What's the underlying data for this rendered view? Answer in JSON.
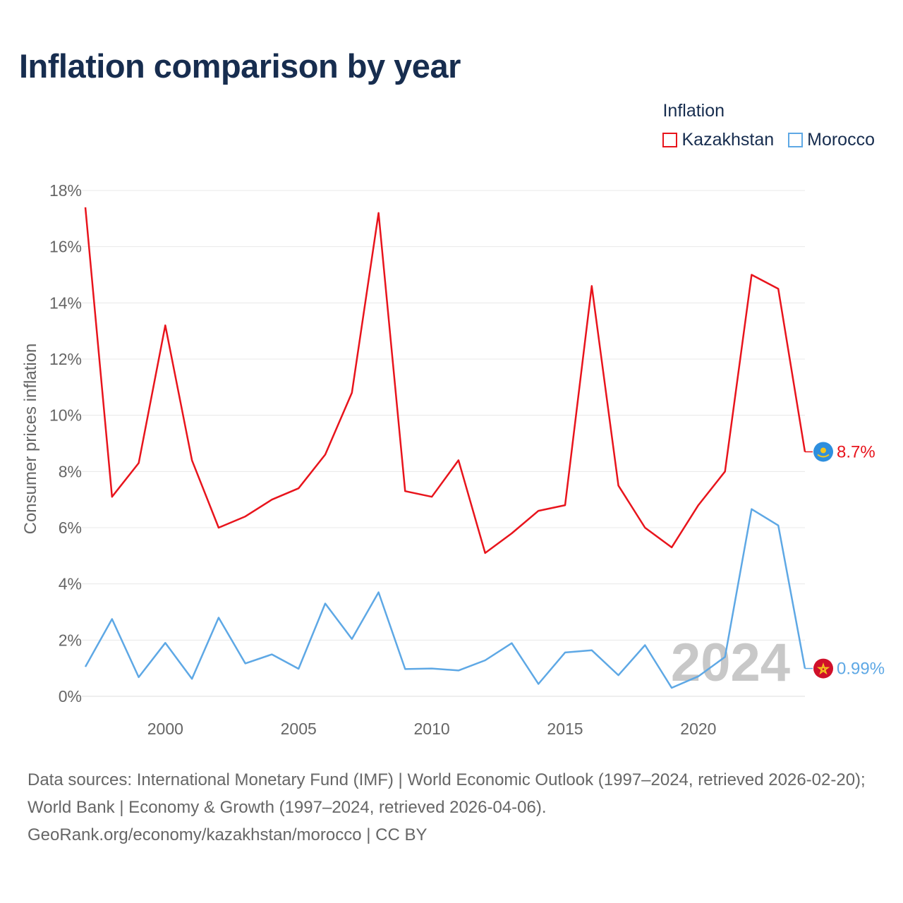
{
  "title": "Inflation comparison by year",
  "legend": {
    "title": "Inflation",
    "items": [
      {
        "label": "Kazakhstan",
        "color": "#e8141c"
      },
      {
        "label": "Morocco",
        "color": "#5ea8e5"
      }
    ]
  },
  "watermark_year": "2024",
  "source": {
    "line1": "Data sources: International Monetary Fund (IMF) | World Economic Outlook (1997–2024, retrieved 2026-02-20); World Bank | Economy & Growth (1997–2024, retrieved 2026-04-06).",
    "line2": "GeoRank.org/economy/kazakhstan/morocco | CC BY"
  },
  "chart_data": {
    "type": "line",
    "title": "Inflation comparison by year",
    "xlabel": "",
    "ylabel": "Consumer prices inflation",
    "xlim": [
      1997,
      2024
    ],
    "ylim": [
      0,
      18
    ],
    "x_ticks": [
      2000,
      2005,
      2010,
      2015,
      2020
    ],
    "y_ticks": [
      0,
      2,
      4,
      6,
      8,
      10,
      12,
      14,
      16,
      18
    ],
    "y_tick_suffix": "%",
    "grid": true,
    "legend_position": "top-right",
    "x": [
      1997,
      1998,
      1999,
      2000,
      2001,
      2002,
      2003,
      2004,
      2005,
      2006,
      2007,
      2008,
      2009,
      2010,
      2011,
      2012,
      2013,
      2014,
      2015,
      2016,
      2017,
      2018,
      2019,
      2020,
      2021,
      2022,
      2023,
      2024
    ],
    "series": [
      {
        "name": "Kazakhstan",
        "color": "#e8141c",
        "end_label": "8.7%",
        "flag": "kazakhstan-flag",
        "values": [
          17.4,
          7.1,
          8.3,
          13.2,
          8.4,
          6.0,
          6.4,
          7.0,
          7.4,
          8.6,
          10.8,
          17.2,
          7.3,
          7.1,
          8.4,
          5.1,
          5.8,
          6.6,
          6.8,
          14.6,
          7.5,
          6.0,
          5.3,
          6.8,
          8.0,
          15.0,
          14.5,
          8.7
        ]
      },
      {
        "name": "Morocco",
        "color": "#5ea8e5",
        "end_label": "0.99%",
        "flag": "morocco-flag",
        "values": [
          1.05,
          2.75,
          0.68,
          1.9,
          0.62,
          2.8,
          1.17,
          1.49,
          0.98,
          3.3,
          2.04,
          3.7,
          0.97,
          0.99,
          0.92,
          1.28,
          1.89,
          0.44,
          1.56,
          1.64,
          0.75,
          1.82,
          0.3,
          0.71,
          1.4,
          6.66,
          6.08,
          0.99
        ]
      }
    ]
  }
}
